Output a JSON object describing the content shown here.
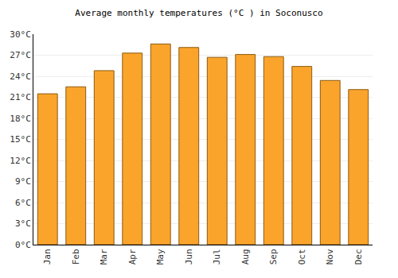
{
  "chart_data": {
    "type": "bar",
    "title": "Average monthly temperatures (°C ) in Soconusco",
    "categories": [
      "Jan",
      "Feb",
      "Mar",
      "Apr",
      "May",
      "Jun",
      "Jul",
      "Aug",
      "Sep",
      "Oct",
      "Nov",
      "Dec"
    ],
    "values": [
      21.5,
      22.5,
      24.8,
      27.3,
      28.6,
      28.1,
      26.7,
      27.1,
      26.8,
      25.4,
      23.4,
      22.1
    ],
    "color": "#fba42c",
    "ylim": [
      0,
      30
    ],
    "yticks": [
      {
        "value": 0,
        "label": "0°C"
      },
      {
        "value": 3,
        "label": "3°C"
      },
      {
        "value": 6,
        "label": "6°C"
      },
      {
        "value": 9,
        "label": "9°C"
      },
      {
        "value": 12,
        "label": "12°C"
      },
      {
        "value": 15,
        "label": "15°C"
      },
      {
        "value": 18,
        "label": "18°C"
      },
      {
        "value": 21,
        "label": "21°C"
      },
      {
        "value": 24,
        "label": "24°C"
      },
      {
        "value": 27,
        "label": "27°C"
      },
      {
        "value": 30,
        "label": "30°C"
      }
    ],
    "grid": true
  }
}
